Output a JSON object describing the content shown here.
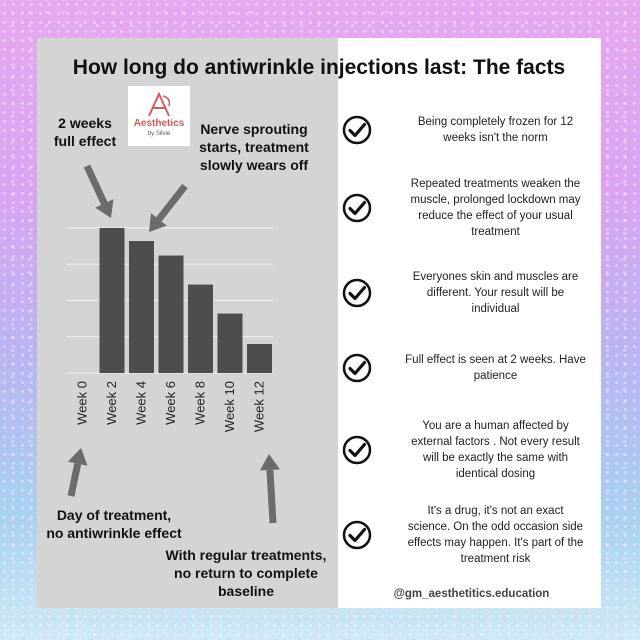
{
  "title": "How long do antiwrinkle injections last: The facts",
  "logo": {
    "name": "Aesthetics",
    "sub": "by Silvie",
    "color": "#d35a5a"
  },
  "annotations": {
    "two_weeks": [
      "2 weeks",
      "full effect"
    ],
    "nerve": [
      "Nerve sprouting",
      "starts, treatment",
      "slowly wears off"
    ],
    "day_of_treatment": [
      "Day of treatment,",
      "no antiwrinkle effect"
    ],
    "regular": [
      "With regular treatments,",
      "no return to complete",
      "baseline"
    ]
  },
  "chart_data": {
    "type": "bar",
    "categories": [
      "Week 0",
      "Week 2",
      "Week 4",
      "Week 6",
      "Week 8",
      "Week 10",
      "Week 12"
    ],
    "values": [
      0,
      100,
      91,
      81,
      61,
      41,
      20
    ],
    "title": "",
    "xlabel": "",
    "ylabel": "",
    "ylim": [
      0,
      100
    ],
    "grid": true,
    "bar_color": "#4d4d4d",
    "grid_color": "#efefef"
  },
  "facts": [
    {
      "lines": [
        "Being completely frozen for 12",
        "weeks isn't the norm"
      ]
    },
    {
      "lines": [
        "Repeated treatments weaken the",
        "muscle, prolonged lockdown may",
        "reduce the effect of your usual",
        "treatment"
      ]
    },
    {
      "lines": [
        "Everyones skin and muscles are",
        "different. Your result will be",
        "individual"
      ]
    },
    {
      "lines": [
        "Full effect is seen at 2 weeks. Have",
        "patience"
      ]
    },
    {
      "lines": [
        "You are a human affected by",
        "external factors . Not every result",
        "will be exactly the same with",
        "identical dosing"
      ]
    },
    {
      "lines": [
        "It's a drug, it's not an exact",
        "science. On the odd occasion side",
        "effects may happen. It's part of the",
        "treatment risk"
      ]
    }
  ],
  "handle": "@gm_aesthetitics.education",
  "colors": {
    "panel": "#d4d4d4",
    "arrow": "#6b6b6b",
    "text": "#111111"
  }
}
